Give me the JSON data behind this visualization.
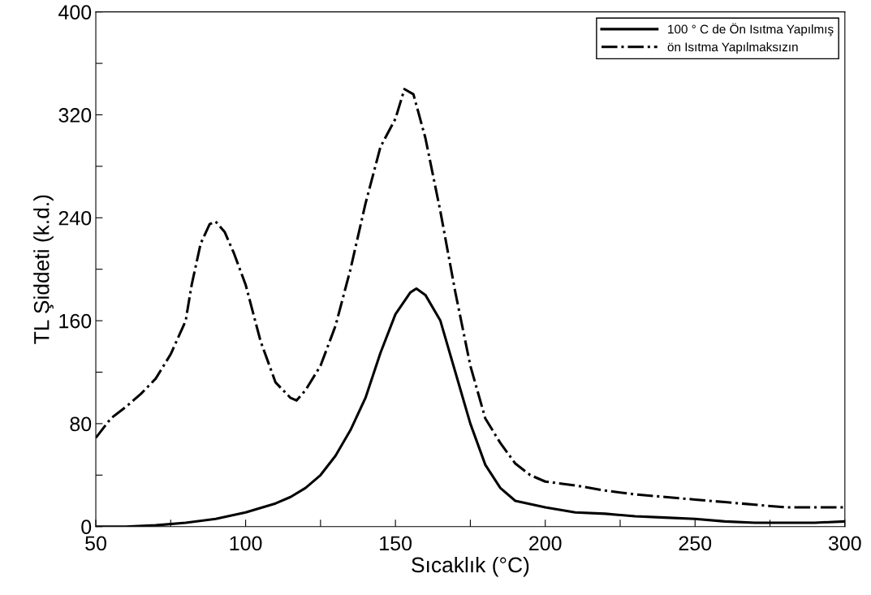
{
  "chart_data": {
    "type": "line",
    "xlabel": "Sıcaklık (°C)",
    "ylabel": "TL Şiddeti (k.d.)",
    "xlim": [
      50,
      300
    ],
    "xticks": [
      50,
      {
        "value": 75,
        "label": null
      },
      100,
      {
        "value": 125,
        "label": null
      },
      150,
      {
        "value": 175,
        "label": null
      },
      200,
      {
        "value": 225,
        "label": null
      },
      250,
      {
        "value": 275,
        "label": null
      },
      300
    ],
    "ylim": [
      0,
      400
    ],
    "yticks": [
      0,
      {
        "value": 40,
        "label": null
      },
      80,
      {
        "value": 120,
        "label": null
      },
      160,
      {
        "value": 200,
        "label": null
      },
      240,
      {
        "value": 280,
        "label": null
      },
      320,
      {
        "value": 360,
        "label": null
      },
      400
    ],
    "grid": false,
    "legend": "top right",
    "marker": "none",
    "series": [
      {
        "name": "100 ° C de Ön Isıtma Yapılmış",
        "color": "#000000",
        "line_style": "solid",
        "x": [
          50,
          60,
          70,
          80,
          90,
          100,
          110,
          115,
          120,
          125,
          130,
          135,
          140,
          145,
          150,
          155,
          157,
          160,
          165,
          170,
          175,
          180,
          185,
          190,
          200,
          210,
          220,
          230,
          240,
          250,
          260,
          270,
          280,
          290,
          300
        ],
        "values": [
          0,
          0,
          1,
          3,
          6,
          11,
          18,
          23,
          30,
          40,
          55,
          75,
          100,
          135,
          165,
          182,
          185,
          180,
          160,
          120,
          80,
          48,
          30,
          20,
          15,
          11,
          10,
          8,
          7,
          6,
          4,
          3,
          3,
          3,
          4
        ]
      },
      {
        "name": "ön Isıtma Yapılmaksızın",
        "color": "#000000",
        "line_style": "dashdot",
        "x": [
          50,
          55,
          60,
          65,
          70,
          75,
          80,
          82,
          85,
          88,
          90,
          93,
          96,
          100,
          105,
          110,
          115,
          117,
          120,
          125,
          130,
          135,
          140,
          145,
          150,
          153,
          156,
          160,
          165,
          170,
          175,
          180,
          185,
          190,
          195,
          200,
          210,
          220,
          230,
          240,
          250,
          260,
          270,
          280,
          290,
          300
        ],
        "values": [
          69,
          84,
          93,
          103,
          115,
          134,
          160,
          188,
          220,
          235,
          237,
          229,
          213,
          188,
          144,
          112,
          100,
          98,
          106,
          125,
          156,
          200,
          251,
          295,
          317,
          340,
          336,
          302,
          245,
          182,
          125,
          84,
          65,
          49,
          40,
          35,
          32,
          28,
          25,
          23,
          21,
          19,
          17,
          15,
          15,
          15
        ]
      }
    ]
  }
}
